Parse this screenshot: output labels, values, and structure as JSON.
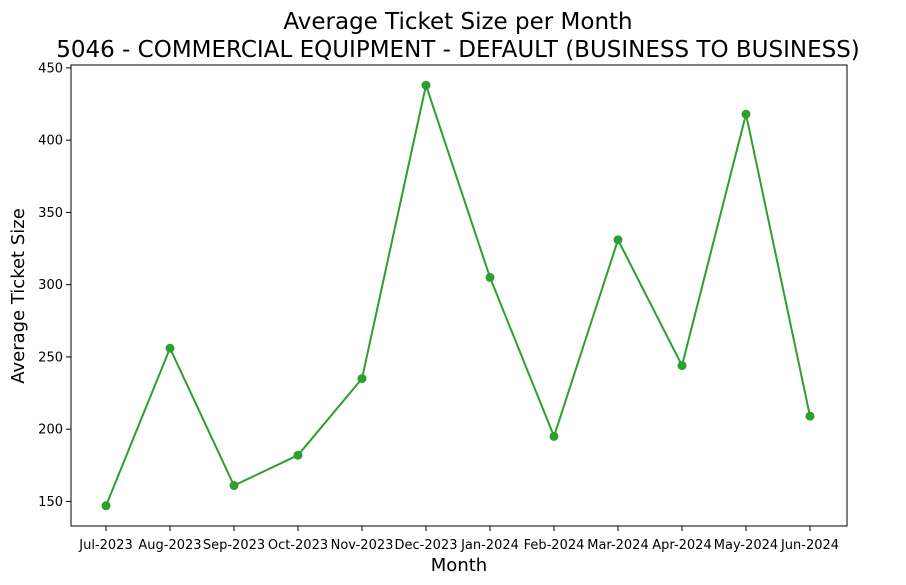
{
  "chart_data": {
    "type": "line",
    "title": "Average Ticket Size per Month",
    "subtitle": "5046 - COMMERCIAL EQUIPMENT - DEFAULT (BUSINESS TO BUSINESS)",
    "xlabel": "Month",
    "ylabel": "Average Ticket Size",
    "categories": [
      "Jul-2023",
      "Aug-2023",
      "Sep-2023",
      "Oct-2023",
      "Nov-2023",
      "Dec-2023",
      "Jan-2024",
      "Feb-2024",
      "Mar-2024",
      "Apr-2024",
      "May-2024",
      "Jun-2024"
    ],
    "series": [
      {
        "values": [
          147,
          256,
          161,
          182,
          235,
          438,
          305,
          195,
          331,
          244,
          418,
          209
        ],
        "color": "#2ca02c",
        "marker": "circle"
      }
    ],
    "ylim": [
      133,
      452
    ],
    "yticks": [
      150,
      200,
      250,
      300,
      350,
      400,
      450
    ],
    "grid": false,
    "legend": "none"
  }
}
